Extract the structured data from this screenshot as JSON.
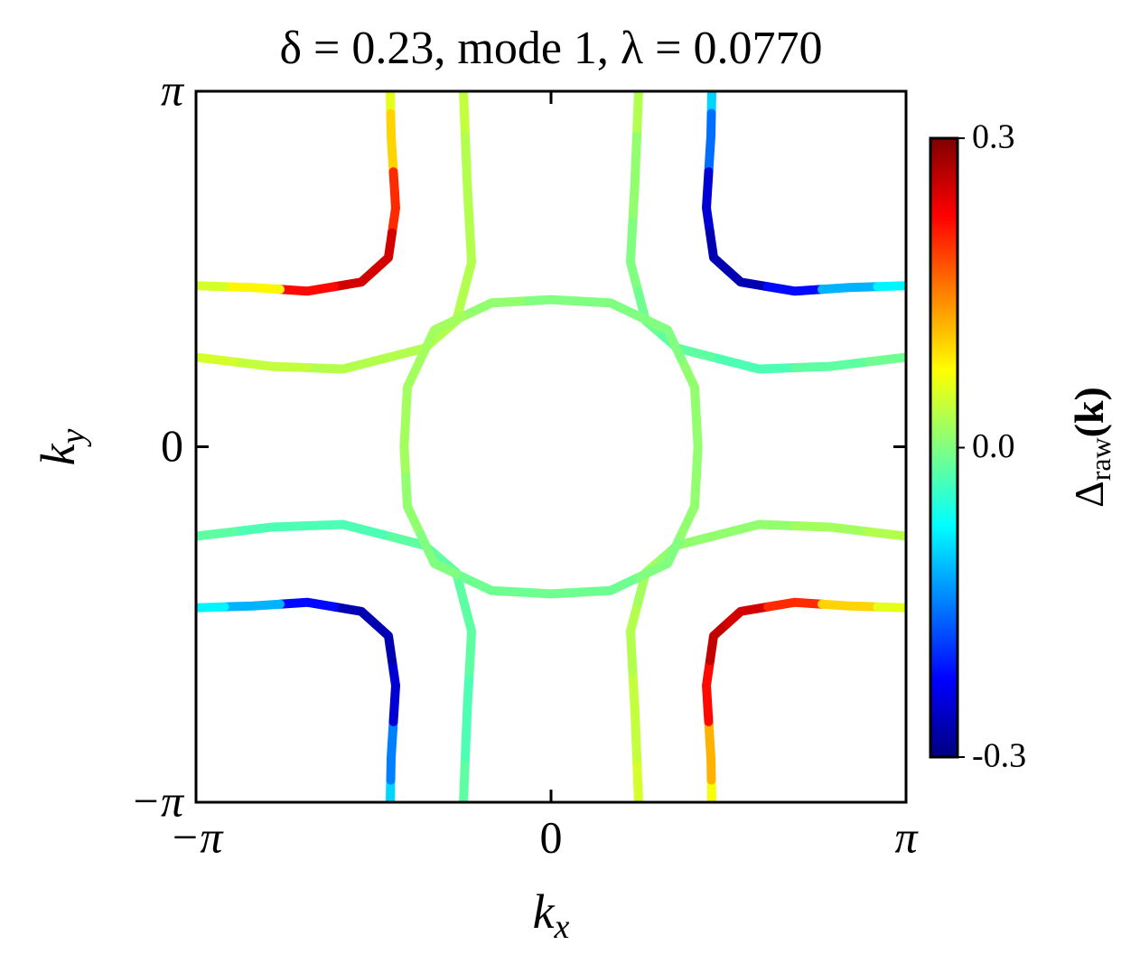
{
  "chart_data": {
    "type": "line",
    "title": "δ = 0.23, mode 1, λ = 0.0770",
    "x_label": "k",
    "x_label_sub": "x",
    "y_label": "k",
    "y_label_sub": "y",
    "xlim": [
      -3.1416,
      3.1416
    ],
    "ylim": [
      -3.1416,
      3.1416
    ],
    "xticks": [
      {
        "value": -3.1416,
        "label": "−π"
      },
      0,
      {
        "value": 3.1416,
        "label": "π"
      }
    ],
    "yticks": [
      {
        "value": -3.1416,
        "label": "−π"
      },
      0,
      {
        "value": 3.1416,
        "label": "π"
      }
    ],
    "colormap": "jet",
    "colorbar": {
      "label": "Δ",
      "label_sub": "raw",
      "label_tail": "(k)",
      "lim": [
        -0.3,
        0.3
      ],
      "ticks": [
        -0.3,
        {
          "value": 0,
          "label": "0.0"
        },
        0.3
      ]
    },
    "series": [
      {
        "x": [
          -1.423,
          -1.415,
          -1.375,
          -1.439,
          -1.679,
          -2.158,
          -2.638,
          -3.142
        ],
        "y": [
          3.142,
          2.75,
          2.11,
          1.671,
          1.455,
          1.375,
          1.407,
          1.423
        ],
        "values": [
          0.06,
          0.1,
          0.2,
          0.25,
          0.25,
          0.22,
          0.08,
          0.05
        ]
      },
      {
        "x": [
          1.423,
          1.415,
          1.375,
          1.439,
          1.679,
          2.158,
          2.638,
          3.142
        ],
        "y": [
          3.142,
          2.75,
          2.11,
          1.671,
          1.455,
          1.375,
          1.407,
          1.423
        ],
        "values": [
          -0.1,
          -0.16,
          -0.25,
          -0.27,
          -0.27,
          -0.22,
          -0.12,
          -0.08
        ]
      },
      {
        "x": [
          -1.423,
          -1.415,
          -1.375,
          -1.439,
          -1.679,
          -2.158,
          -2.638,
          -3.142
        ],
        "y": [
          -3.142,
          -2.75,
          -2.11,
          -1.671,
          -1.455,
          -1.375,
          -1.407,
          -1.423
        ],
        "values": [
          -0.1,
          -0.15,
          -0.25,
          -0.27,
          -0.27,
          -0.22,
          -0.12,
          -0.08
        ]
      },
      {
        "x": [
          1.423,
          1.415,
          1.375,
          1.439,
          1.679,
          2.158,
          2.638,
          3.142
        ],
        "y": [
          -3.142,
          -2.75,
          -2.11,
          -1.671,
          -1.455,
          -1.375,
          -1.407,
          -1.423
        ],
        "values": [
          0.07,
          0.12,
          0.22,
          0.26,
          0.25,
          0.2,
          0.1,
          0.06
        ]
      },
      {
        "x": [
          -0.775,
          -0.743,
          -0.703,
          -0.839,
          -1.119,
          -1.839,
          -2.478,
          -3.142
        ],
        "y": [
          3.142,
          2.35,
          1.631,
          1.111,
          0.871,
          0.687,
          0.711,
          0.791
        ],
        "values": [
          0.04,
          0.03,
          0.03,
          0.03,
          0.03,
          0.03,
          0.04,
          0.05
        ]
      },
      {
        "x": [
          0.775,
          0.743,
          0.703,
          0.839,
          1.119,
          1.839,
          2.478,
          3.142
        ],
        "y": [
          3.142,
          2.35,
          1.631,
          1.111,
          0.871,
          0.687,
          0.711,
          0.791
        ],
        "values": [
          0.03,
          0.01,
          0,
          -0.01,
          -0.02,
          -0.03,
          -0.02,
          -0.01
        ]
      },
      {
        "x": [
          -0.775,
          -0.743,
          -0.703,
          -0.839,
          -1.119,
          -1.839,
          -2.478,
          -3.142
        ],
        "y": [
          -3.142,
          -2.35,
          -1.631,
          -1.111,
          -0.871,
          -0.687,
          -0.711,
          -0.791
        ],
        "values": [
          -0.02,
          -0.03,
          -0.02,
          -0.02,
          -0.02,
          -0.03,
          -0.03,
          -0.02
        ]
      },
      {
        "x": [
          0.775,
          0.743,
          0.703,
          0.839,
          1.119,
          1.839,
          2.478,
          3.142
        ],
        "y": [
          -3.142,
          -2.35,
          -1.631,
          -1.111,
          -0.871,
          -0.687,
          -0.711,
          -0.791
        ],
        "values": [
          0.05,
          0.04,
          0.03,
          0.02,
          0.01,
          0.01,
          0.02,
          0.03
        ]
      },
      {
        "closed": true,
        "x": [
          1.3,
          1.271,
          1.032,
          0.527,
          0,
          -0.527,
          -1.032,
          -1.271,
          -1.3,
          -1.271,
          -1.032,
          -0.527,
          0,
          0.527,
          1.032,
          1.271
        ],
        "y": [
          0,
          0.527,
          1.032,
          1.271,
          1.3,
          1.271,
          1.032,
          0.527,
          0,
          -0.527,
          -1.032,
          -1.271,
          -1.3,
          -1.271,
          -1.032,
          -0.527
        ],
        "values": [
          0.01,
          0.01,
          0.0,
          0.0,
          0.0,
          0.01,
          0.02,
          0.02,
          0.02,
          0.01,
          0.0,
          -0.01,
          -0.01,
          -0.01,
          0.0,
          0.01
        ]
      }
    ]
  }
}
